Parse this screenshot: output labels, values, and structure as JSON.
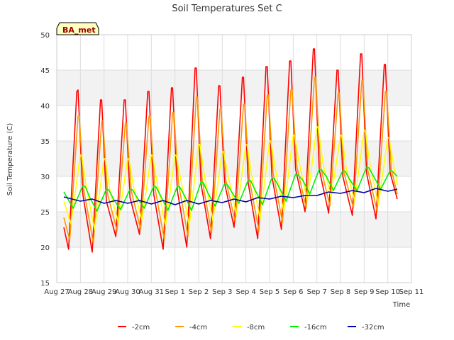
{
  "chart_data": {
    "type": "line",
    "title": "Soil Temperatures Set C",
    "xlabel": "Time",
    "ylabel": "Soil Temperature (C)",
    "badge": "BA_met",
    "ylim": [
      15,
      50
    ],
    "yticks": [
      15,
      20,
      25,
      30,
      35,
      40,
      45,
      50
    ],
    "xlim": [
      0,
      15
    ],
    "xticks": [
      {
        "x": 0,
        "label": "Aug 27"
      },
      {
        "x": 1,
        "label": "Aug 28"
      },
      {
        "x": 2,
        "label": "Aug 29"
      },
      {
        "x": 3,
        "label": "Aug 30"
      },
      {
        "x": 4,
        "label": "Aug 31"
      },
      {
        "x": 5,
        "label": "Sep 1"
      },
      {
        "x": 6,
        "label": "Sep 2"
      },
      {
        "x": 7,
        "label": "Sep 3"
      },
      {
        "x": 8,
        "label": "Sep 4"
      },
      {
        "x": 9,
        "label": "Sep 5"
      },
      {
        "x": 10,
        "label": "Sep 6"
      },
      {
        "x": 11,
        "label": "Sep 7"
      },
      {
        "x": 12,
        "label": "Sep 8"
      },
      {
        "x": 13,
        "label": "Sep 9"
      },
      {
        "x": 14,
        "label": "Sep 10"
      },
      {
        "x": 15,
        "label": "Sep 11"
      }
    ],
    "grid": true,
    "bands": [
      [
        20,
        25
      ],
      [
        30,
        35
      ],
      [
        40,
        45
      ]
    ],
    "legend_position": "bottom",
    "series": [
      {
        "name": "-2cm",
        "color": "#ff0000",
        "x": [
          0.3,
          0.5,
          0.85,
          0.9,
          1.1,
          1.5,
          1.85,
          1.9,
          2.1,
          2.5,
          2.85,
          2.9,
          3.1,
          3.5,
          3.85,
          3.9,
          4.1,
          4.5,
          4.85,
          4.9,
          5.1,
          5.5,
          5.85,
          5.9,
          6.1,
          6.5,
          6.85,
          6.9,
          7.1,
          7.5,
          7.85,
          7.9,
          8.1,
          8.5,
          8.85,
          8.9,
          9.1,
          9.5,
          9.85,
          9.9,
          10.1,
          10.5,
          10.85,
          10.9,
          11.1,
          11.5,
          11.85,
          11.9,
          12.1,
          12.5,
          12.85,
          12.9,
          13.1,
          13.5,
          13.85,
          13.9,
          14.1,
          14.4
        ],
        "y": [
          22.8,
          19.7,
          42.0,
          42.2,
          27.5,
          19.3,
          40.8,
          40.8,
          26.5,
          21.5,
          40.8,
          40.8,
          27.0,
          21.8,
          42.0,
          42.0,
          27.5,
          19.7,
          42.5,
          42.5,
          28.0,
          20.0,
          45.3,
          45.3,
          29.0,
          21.2,
          42.8,
          42.8,
          29.0,
          22.8,
          44.0,
          44.0,
          29.0,
          21.2,
          45.5,
          45.5,
          30.0,
          22.5,
          46.3,
          46.3,
          31.0,
          25.0,
          48.0,
          48.0,
          31.0,
          24.8,
          45.0,
          45.0,
          30.0,
          24.5,
          47.3,
          47.3,
          30.5,
          24.0,
          45.8,
          45.8,
          30.5,
          26.8
        ]
      },
      {
        "name": "-4cm",
        "color": "#ff9900",
        "x": [
          0.3,
          0.55,
          0.9,
          0.95,
          1.15,
          1.55,
          1.9,
          1.95,
          2.15,
          2.55,
          2.9,
          2.95,
          3.15,
          3.55,
          3.9,
          3.95,
          4.15,
          4.55,
          4.9,
          4.95,
          5.15,
          5.55,
          5.9,
          5.95,
          6.15,
          6.55,
          6.9,
          6.95,
          7.15,
          7.55,
          7.9,
          7.95,
          8.15,
          8.55,
          8.9,
          8.95,
          9.15,
          9.55,
          9.9,
          9.95,
          10.15,
          10.55,
          10.9,
          10.95,
          11.15,
          11.55,
          11.9,
          11.95,
          12.15,
          12.55,
          12.9,
          12.95,
          13.15,
          13.55,
          13.9,
          13.95,
          14.15,
          14.4
        ],
        "y": [
          24.2,
          21.0,
          38.5,
          38.5,
          28.0,
          20.5,
          37.8,
          37.8,
          27.5,
          22.3,
          37.5,
          37.5,
          28.0,
          22.5,
          38.5,
          38.5,
          28.5,
          21.0,
          39.0,
          39.0,
          29.0,
          21.5,
          41.2,
          41.2,
          29.5,
          22.0,
          39.5,
          39.5,
          29.5,
          23.5,
          40.2,
          40.2,
          29.5,
          22.3,
          41.5,
          41.5,
          30.5,
          23.5,
          42.2,
          42.2,
          31.5,
          25.5,
          44.0,
          44.0,
          31.5,
          25.8,
          41.8,
          41.8,
          30.5,
          25.5,
          43.5,
          43.5,
          31.0,
          25.0,
          42.0,
          42.0,
          31.0,
          27.5
        ]
      },
      {
        "name": "-8cm",
        "color": "#ffff00",
        "x": [
          0.3,
          0.6,
          1.0,
          1.05,
          1.25,
          1.6,
          2.0,
          2.05,
          2.25,
          2.6,
          3.0,
          3.05,
          3.25,
          3.6,
          4.0,
          4.05,
          4.25,
          4.6,
          5.0,
          5.05,
          5.25,
          5.6,
          6.0,
          6.05,
          6.25,
          6.6,
          7.0,
          7.05,
          7.25,
          7.6,
          8.0,
          8.05,
          8.25,
          8.6,
          9.0,
          9.05,
          9.25,
          9.6,
          10.0,
          10.05,
          10.25,
          10.6,
          11.0,
          11.05,
          11.25,
          11.6,
          12.0,
          12.05,
          12.25,
          12.6,
          13.0,
          13.05,
          13.25,
          13.6,
          14.0,
          14.05,
          14.25,
          14.4
        ],
        "y": [
          26.5,
          23.3,
          33.0,
          33.0,
          28.5,
          22.5,
          32.5,
          32.5,
          28.0,
          23.5,
          32.5,
          32.5,
          28.5,
          23.8,
          33.0,
          33.0,
          29.0,
          23.0,
          33.0,
          33.0,
          29.5,
          23.0,
          34.5,
          34.5,
          30.0,
          23.8,
          33.5,
          33.5,
          30.0,
          24.5,
          34.5,
          34.5,
          30.0,
          24.0,
          35.0,
          35.0,
          31.0,
          25.0,
          35.8,
          35.8,
          32.0,
          26.5,
          37.0,
          37.0,
          32.0,
          27.0,
          35.8,
          35.8,
          31.0,
          26.5,
          36.5,
          36.5,
          31.5,
          26.0,
          35.5,
          35.5,
          31.5,
          28.8
        ]
      },
      {
        "name": "-16cm",
        "color": "#00ee00",
        "x": [
          0.3,
          0.7,
          1.1,
          1.2,
          1.4,
          1.7,
          2.1,
          2.2,
          2.4,
          2.7,
          3.1,
          3.2,
          3.4,
          3.7,
          4.1,
          4.2,
          4.4,
          4.7,
          5.1,
          5.2,
          5.4,
          5.7,
          6.1,
          6.2,
          6.4,
          6.7,
          7.1,
          7.2,
          7.4,
          7.7,
          8.1,
          8.2,
          8.4,
          8.7,
          9.1,
          9.2,
          9.4,
          9.7,
          10.1,
          10.2,
          10.4,
          10.7,
          11.1,
          11.2,
          11.4,
          11.7,
          12.1,
          12.2,
          12.4,
          12.7,
          13.1,
          13.2,
          13.4,
          13.7,
          14.1,
          14.2,
          14.4
        ],
        "y": [
          27.8,
          25.5,
          28.7,
          28.6,
          27.0,
          25.1,
          28.2,
          28.1,
          26.8,
          25.3,
          28.2,
          28.1,
          27.0,
          25.5,
          28.6,
          28.5,
          27.2,
          25.2,
          28.6,
          28.5,
          27.3,
          25.2,
          29.2,
          29.1,
          27.6,
          25.8,
          29.0,
          28.9,
          27.8,
          26.2,
          29.5,
          29.4,
          28.0,
          26.0,
          29.8,
          29.7,
          28.5,
          26.5,
          30.3,
          30.2,
          29.5,
          27.5,
          31.0,
          30.9,
          30.0,
          28.0,
          30.8,
          30.7,
          29.5,
          28.0,
          31.3,
          31.2,
          30.0,
          28.2,
          30.8,
          30.7,
          30.0
        ]
      },
      {
        "name": "-32cm",
        "color": "#0000aa",
        "x": [
          0.3,
          1.0,
          1.5,
          2.0,
          2.5,
          3.0,
          3.5,
          4.0,
          4.5,
          5.0,
          5.5,
          6.0,
          6.5,
          7.0,
          7.5,
          8.0,
          8.5,
          9.0,
          9.5,
          10.0,
          10.5,
          11.0,
          11.5,
          12.0,
          12.5,
          13.0,
          13.5,
          14.0,
          14.4
        ],
        "y": [
          27.1,
          26.5,
          26.8,
          26.2,
          26.6,
          26.2,
          26.6,
          26.1,
          26.6,
          26.0,
          26.6,
          26.1,
          26.6,
          26.3,
          26.8,
          26.4,
          27.0,
          26.8,
          27.2,
          27.0,
          27.3,
          27.3,
          27.8,
          27.6,
          28.0,
          27.7,
          28.3,
          27.9,
          28.2
        ]
      }
    ]
  }
}
